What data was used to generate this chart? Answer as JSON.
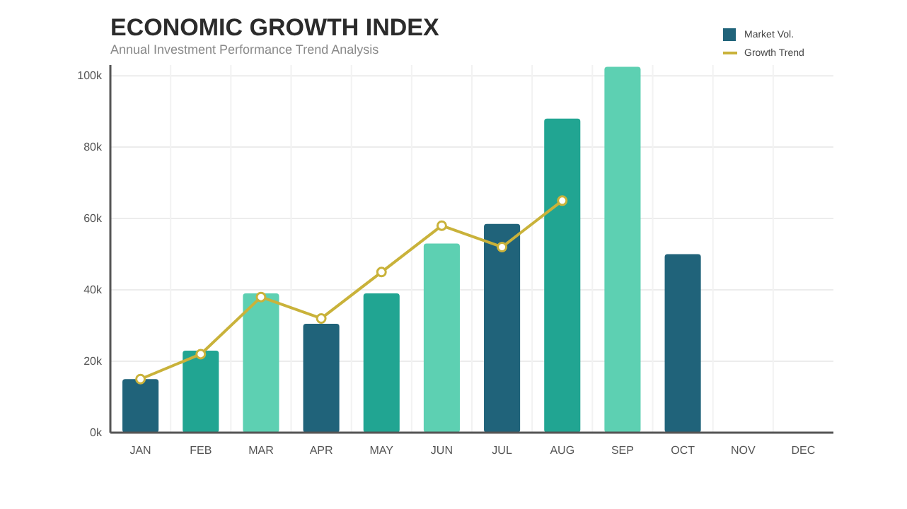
{
  "chart_data": {
    "type": "bar",
    "title": "ECONOMIC GROWTH INDEX",
    "subtitle": "Annual Investment Performance Trend Analysis",
    "categories": [
      "JAN",
      "FEB",
      "MAR",
      "APR",
      "MAY",
      "JUN",
      "JUL",
      "AUG",
      "SEP",
      "OCT",
      "NOV",
      "DEC"
    ],
    "series": [
      {
        "name": "Market Vol.",
        "color": "#20637a",
        "colors": [
          "#20637a",
          "#21a592",
          "#5dd0b2",
          "#20637a",
          "#21a592",
          "#5dd0b2",
          "#20637a",
          "#21a592",
          "#5dd0b2",
          "#20637a",
          null,
          null
        ],
        "values": [
          15000,
          23000,
          39000,
          30500,
          39000,
          53000,
          58500,
          88000,
          102500,
          50000,
          null,
          null
        ]
      },
      {
        "name": "Growth Trend",
        "type": "line",
        "color": "#c9b23a",
        "marker": "circle",
        "values": [
          15000,
          22000,
          38000,
          32000,
          45000,
          58000,
          52000,
          65000,
          null,
          null,
          null,
          null
        ]
      }
    ],
    "ylim": [
      0,
      103000
    ],
    "yticks": [
      {
        "value": 0,
        "label": "0k"
      },
      {
        "value": 20000,
        "label": "20k"
      },
      {
        "value": 40000,
        "label": "40k"
      },
      {
        "value": 60000,
        "label": "60k"
      },
      {
        "value": 80000,
        "label": "80k"
      },
      {
        "value": 100000,
        "label": "100k"
      }
    ],
    "grid": true,
    "legend": "top right"
  }
}
